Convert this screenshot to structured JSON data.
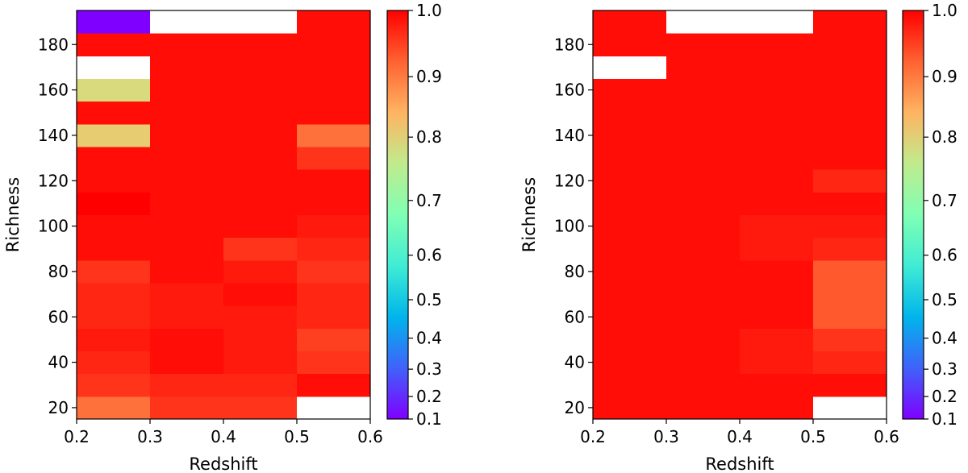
{
  "colormap": "rainbow",
  "colors": {
    "missing": "#ffffff",
    "frame": "#000000",
    "gradient_stops": [
      "#8000ff",
      "#4062fa",
      "#00b5eb",
      "#40ecd4",
      "#80ffb4",
      "#c0eb8d",
      "#ffb462",
      "#ff6232",
      "#ff0000"
    ]
  },
  "chart_data": [
    {
      "type": "heatmap",
      "xlabel": "Redshift",
      "ylabel": "Richness",
      "xlim": [
        0.2,
        0.6
      ],
      "ylim": [
        15,
        195
      ],
      "x_edges": [
        0.2,
        0.3,
        0.4,
        0.5,
        0.6
      ],
      "y_edges": [
        15,
        25,
        35,
        45,
        55,
        65,
        75,
        85,
        95,
        105,
        115,
        125,
        135,
        145,
        155,
        165,
        175,
        185,
        195
      ],
      "xticks": [
        "0.2",
        "0.3",
        "0.4",
        "0.5",
        "0.6"
      ],
      "yticks": [
        "20",
        "40",
        "60",
        "80",
        "100",
        "120",
        "140",
        "160",
        "180"
      ],
      "colorbar": {
        "vmin": 0.1,
        "vmax": 1.0,
        "ticks": [
          "0.1",
          "0.2",
          "0.3",
          "0.4",
          "0.5",
          "0.6",
          "0.7",
          "0.8",
          "0.9",
          "1.0"
        ],
        "scale": "nonuniform"
      },
      "values": [
        [
          0.91,
          0.96,
          0.96,
          null
        ],
        [
          0.96,
          0.97,
          0.97,
          0.99
        ],
        [
          0.97,
          0.99,
          0.98,
          0.96
        ],
        [
          0.98,
          0.99,
          0.98,
          0.95
        ],
        [
          0.97,
          0.98,
          0.98,
          0.97
        ],
        [
          0.97,
          0.98,
          0.99,
          0.97
        ],
        [
          0.96,
          0.99,
          0.98,
          0.96
        ],
        [
          0.99,
          0.99,
          0.96,
          0.97
        ],
        [
          0.99,
          0.99,
          0.99,
          0.98
        ],
        [
          1.0,
          0.99,
          0.99,
          0.99
        ],
        [
          0.99,
          0.99,
          0.99,
          0.99
        ],
        [
          0.99,
          0.99,
          0.99,
          0.96
        ],
        [
          0.81,
          0.99,
          0.99,
          0.91
        ],
        [
          0.99,
          0.99,
          0.99,
          0.99
        ],
        [
          0.79,
          0.99,
          0.99,
          0.99
        ],
        [
          null,
          0.99,
          0.99,
          0.99
        ],
        [
          0.99,
          0.99,
          0.99,
          0.99
        ],
        [
          0.1,
          null,
          null,
          0.99
        ]
      ]
    },
    {
      "type": "heatmap",
      "xlabel": "Redshift",
      "ylabel": "Richness",
      "xlim": [
        0.2,
        0.6
      ],
      "ylim": [
        15,
        195
      ],
      "x_edges": [
        0.2,
        0.3,
        0.4,
        0.5,
        0.6
      ],
      "y_edges": [
        15,
        25,
        35,
        45,
        55,
        65,
        75,
        85,
        95,
        105,
        115,
        125,
        135,
        145,
        155,
        165,
        175,
        185,
        195
      ],
      "xticks": [
        "0.2",
        "0.3",
        "0.4",
        "0.5",
        "0.6"
      ],
      "yticks": [
        "20",
        "40",
        "60",
        "80",
        "100",
        "120",
        "140",
        "160",
        "180"
      ],
      "colorbar": {
        "vmin": 0.1,
        "vmax": 1.0,
        "ticks": [
          "0.1",
          "0.2",
          "0.3",
          "0.4",
          "0.5",
          "0.6",
          "0.7",
          "0.8",
          "0.9",
          "1.0"
        ],
        "scale": "nonuniform"
      },
      "values": [
        [
          0.99,
          0.99,
          0.99,
          null
        ],
        [
          0.99,
          0.99,
          0.99,
          0.99
        ],
        [
          0.99,
          0.99,
          0.98,
          0.97
        ],
        [
          0.99,
          0.99,
          0.98,
          0.96
        ],
        [
          0.99,
          0.99,
          0.99,
          0.93
        ],
        [
          0.99,
          0.99,
          0.99,
          0.93
        ],
        [
          0.99,
          0.99,
          0.99,
          0.93
        ],
        [
          0.99,
          0.99,
          0.98,
          0.97
        ],
        [
          0.99,
          0.99,
          0.98,
          0.98
        ],
        [
          0.99,
          0.99,
          0.99,
          0.99
        ],
        [
          0.99,
          0.99,
          0.99,
          0.97
        ],
        [
          0.99,
          0.99,
          0.99,
          0.99
        ],
        [
          0.99,
          0.99,
          0.99,
          0.99
        ],
        [
          0.99,
          0.99,
          0.99,
          0.99
        ],
        [
          0.99,
          0.99,
          0.99,
          0.99
        ],
        [
          null,
          0.99,
          0.99,
          0.99
        ],
        [
          0.99,
          0.99,
          0.99,
          0.99
        ],
        [
          0.99,
          null,
          null,
          0.99
        ]
      ]
    }
  ]
}
